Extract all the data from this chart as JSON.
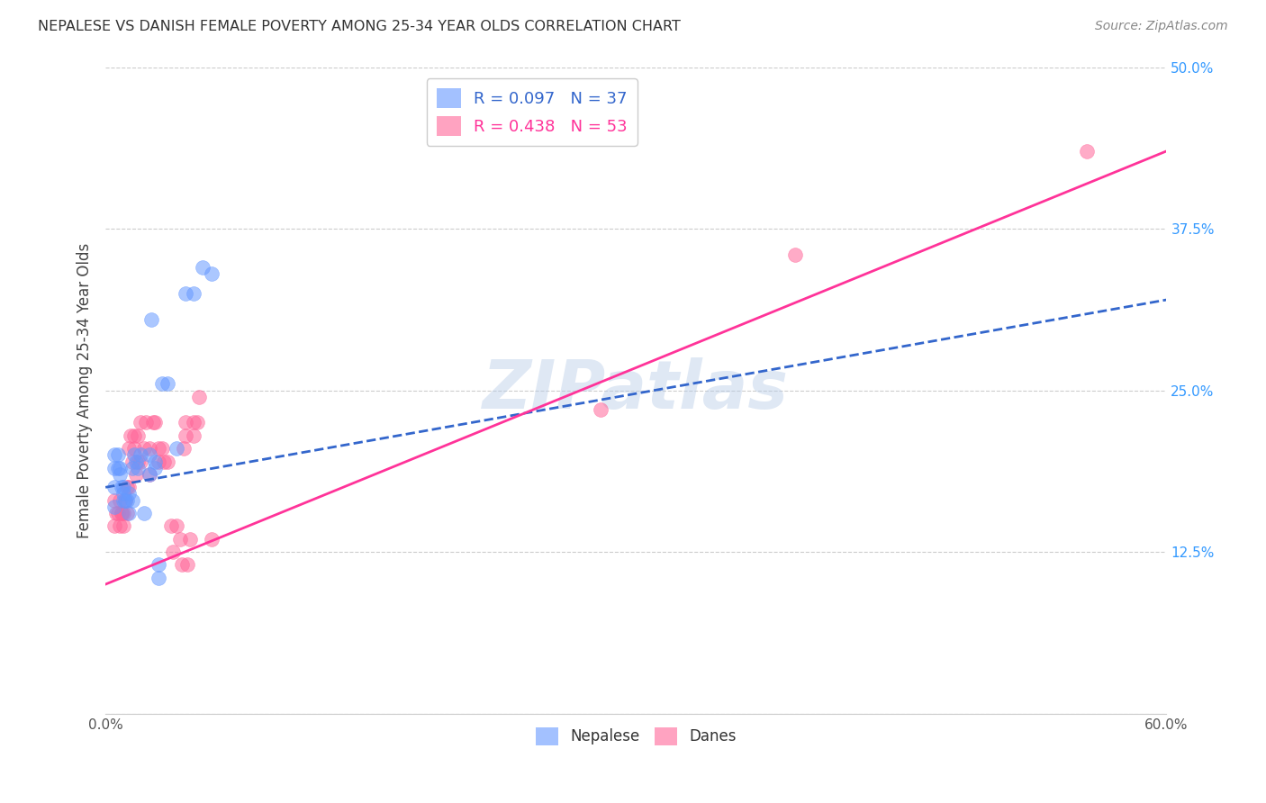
{
  "title": "NEPALESE VS DANISH FEMALE POVERTY AMONG 25-34 YEAR OLDS CORRELATION CHART",
  "source": "Source: ZipAtlas.com",
  "ylabel": "Female Poverty Among 25-34 Year Olds",
  "xmin": 0.0,
  "xmax": 0.6,
  "ymin": 0.0,
  "ymax": 0.5,
  "xticks": [
    0.0,
    0.1,
    0.2,
    0.3,
    0.4,
    0.5,
    0.6
  ],
  "yticks": [
    0.0,
    0.125,
    0.25,
    0.375,
    0.5
  ],
  "xtick_labels": [
    "0.0%",
    "",
    "",
    "",
    "",
    "",
    "60.0%"
  ],
  "ytick_labels": [
    "",
    "12.5%",
    "25.0%",
    "37.5%",
    "50.0%"
  ],
  "nepalese_R": 0.097,
  "nepalese_N": 37,
  "danes_R": 0.438,
  "danes_N": 53,
  "nepalese_color": "#6699ff",
  "danes_color": "#ff6699",
  "nepalese_line_color": "#3366cc",
  "danes_line_color": "#ff3399",
  "watermark": "ZIPatlas",
  "nepalese_x": [
    0.005,
    0.005,
    0.005,
    0.005,
    0.007,
    0.007,
    0.008,
    0.008,
    0.009,
    0.01,
    0.01,
    0.01,
    0.011,
    0.012,
    0.013,
    0.013,
    0.015,
    0.015,
    0.016,
    0.017,
    0.018,
    0.02,
    0.022,
    0.025,
    0.025,
    0.026,
    0.028,
    0.028,
    0.03,
    0.03,
    0.032,
    0.035,
    0.04,
    0.045,
    0.05,
    0.055,
    0.06
  ],
  "nepalese_y": [
    0.175,
    0.16,
    0.19,
    0.2,
    0.19,
    0.2,
    0.19,
    0.185,
    0.175,
    0.175,
    0.165,
    0.17,
    0.165,
    0.165,
    0.155,
    0.17,
    0.165,
    0.19,
    0.2,
    0.195,
    0.19,
    0.2,
    0.155,
    0.185,
    0.2,
    0.305,
    0.195,
    0.19,
    0.105,
    0.115,
    0.255,
    0.255,
    0.205,
    0.325,
    0.325,
    0.345,
    0.34
  ],
  "danes_x": [
    0.005,
    0.005,
    0.006,
    0.007,
    0.008,
    0.008,
    0.009,
    0.009,
    0.01,
    0.01,
    0.011,
    0.012,
    0.012,
    0.013,
    0.013,
    0.014,
    0.015,
    0.016,
    0.016,
    0.017,
    0.018,
    0.018,
    0.02,
    0.02,
    0.022,
    0.023,
    0.025,
    0.025,
    0.027,
    0.028,
    0.03,
    0.03,
    0.032,
    0.033,
    0.035,
    0.037,
    0.038,
    0.04,
    0.042,
    0.043,
    0.044,
    0.045,
    0.045,
    0.046,
    0.048,
    0.05,
    0.05,
    0.052,
    0.053,
    0.28,
    0.39,
    0.555,
    0.06
  ],
  "danes_y": [
    0.165,
    0.145,
    0.155,
    0.155,
    0.165,
    0.145,
    0.155,
    0.155,
    0.155,
    0.145,
    0.165,
    0.155,
    0.175,
    0.175,
    0.205,
    0.215,
    0.195,
    0.205,
    0.215,
    0.185,
    0.195,
    0.215,
    0.195,
    0.225,
    0.205,
    0.225,
    0.205,
    0.185,
    0.225,
    0.225,
    0.195,
    0.205,
    0.205,
    0.195,
    0.195,
    0.145,
    0.125,
    0.145,
    0.135,
    0.115,
    0.205,
    0.225,
    0.215,
    0.115,
    0.135,
    0.215,
    0.225,
    0.225,
    0.245,
    0.235,
    0.355,
    0.435,
    0.135
  ],
  "nepalese_line_x": [
    0.0,
    0.6
  ],
  "nepalese_line_y": [
    0.175,
    0.32
  ],
  "danes_line_x": [
    0.0,
    0.6
  ],
  "danes_line_y": [
    0.1,
    0.435
  ]
}
